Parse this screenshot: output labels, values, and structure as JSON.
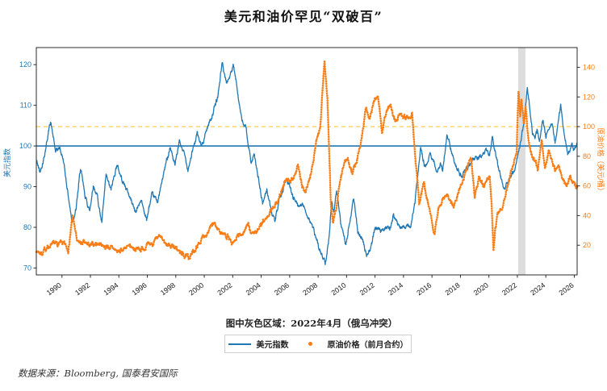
{
  "title": "美元和油价罕见“双破百”",
  "note": "图中灰色区域：2022年4月（俄乌冲突）",
  "source": "数据来源：Bloomberg, 国泰君安国际",
  "colors": {
    "usd_line": "#1f77b4",
    "oil_line": "#f97d14",
    "dashed_hline": "#fcc63c",
    "grey_band": "#d9d9d9",
    "axis": "#2b2b2b",
    "x_tick_label": "#1a1a1a"
  },
  "legend": [
    {
      "label": "美元指数",
      "marker": "line",
      "color": "#1f77b4"
    },
    {
      "label": "原油价格（前月合约）",
      "marker": "dot",
      "color": "#f97d14"
    }
  ],
  "chart_data": {
    "type": "line",
    "title": "美元和油价罕见“双破百”",
    "ylabel_left": "美元指数",
    "ylabel_right": "原油价格（美元/桶）",
    "xlim": [
      1988.2,
      2026.2
    ],
    "ylim_left": [
      68.3,
      124.2
    ],
    "ylim_right": [
      0,
      153.3
    ],
    "x_ticks": [
      1990,
      1992,
      1994,
      1996,
      1998,
      2000,
      2002,
      2004,
      2006,
      2008,
      2010,
      2012,
      2014,
      2016,
      2018,
      2020,
      2022,
      2024,
      2026
    ],
    "y_ticks_left": [
      70,
      80,
      90,
      100,
      110,
      120
    ],
    "y_ticks_right": [
      20,
      40,
      60,
      80,
      100,
      120,
      140
    ],
    "hline_left_solid": 100,
    "hline_right_dashed": 100,
    "grey_band_years": [
      2022.06,
      2022.57
    ],
    "grid": false,
    "legend_position": "bottom-center",
    "series": [
      {
        "name": "美元指数",
        "axis": "left",
        "color": "#1f77b4",
        "style": "solid-line",
        "points": [
          [
            1988.2,
            96.5
          ],
          [
            1988.45,
            93.5
          ],
          [
            1988.75,
            97.5
          ],
          [
            1989.2,
            106.3
          ],
          [
            1989.55,
            98.5
          ],
          [
            1989.85,
            99.5
          ],
          [
            1990.1,
            96.5
          ],
          [
            1990.7,
            81.5
          ],
          [
            1991.0,
            84.5
          ],
          [
            1991.3,
            94.5
          ],
          [
            1991.6,
            88
          ],
          [
            1991.95,
            84
          ],
          [
            1992.2,
            90.5
          ],
          [
            1992.5,
            87.5
          ],
          [
            1992.8,
            81
          ],
          [
            1993.1,
            92.5
          ],
          [
            1993.45,
            89
          ],
          [
            1993.85,
            95.5
          ],
          [
            1994.2,
            92
          ],
          [
            1994.65,
            88.5
          ],
          [
            1995.2,
            83.7
          ],
          [
            1995.55,
            87
          ],
          [
            1995.95,
            81.8
          ],
          [
            1996.3,
            87.7
          ],
          [
            1996.75,
            86.5
          ],
          [
            1997.2,
            94
          ],
          [
            1997.6,
            100
          ],
          [
            1997.95,
            95
          ],
          [
            1998.25,
            101
          ],
          [
            1998.55,
            98.5
          ],
          [
            1998.85,
            94.5
          ],
          [
            1999.2,
            99
          ],
          [
            1999.5,
            103
          ],
          [
            1999.8,
            99.8
          ],
          [
            2000.2,
            104.5
          ],
          [
            2000.6,
            108
          ],
          [
            2000.95,
            112
          ],
          [
            2001.25,
            120.5
          ],
          [
            2001.55,
            115.5
          ],
          [
            2001.85,
            117.5
          ],
          [
            2002.05,
            119.5
          ],
          [
            2002.35,
            113.5
          ],
          [
            2002.65,
            106
          ],
          [
            2002.95,
            104
          ],
          [
            2003.3,
            95.6
          ],
          [
            2003.5,
            97.6
          ],
          [
            2003.8,
            92.1
          ],
          [
            2004.1,
            85.7
          ],
          [
            2004.4,
            89.5
          ],
          [
            2004.7,
            84.1
          ],
          [
            2004.95,
            81.3
          ],
          [
            2005.3,
            86.5
          ],
          [
            2005.7,
            91.5
          ],
          [
            2005.95,
            90.5
          ],
          [
            2006.2,
            88.1
          ],
          [
            2006.6,
            85.3
          ],
          [
            2006.85,
            86.1
          ],
          [
            2007.1,
            84.1
          ],
          [
            2007.5,
            81.3
          ],
          [
            2007.8,
            77.8
          ],
          [
            2008.2,
            73.5
          ],
          [
            2008.5,
            71.5
          ],
          [
            2008.75,
            77
          ],
          [
            2008.95,
            87
          ],
          [
            2009.1,
            83.5
          ],
          [
            2009.3,
            89
          ],
          [
            2009.6,
            81
          ],
          [
            2009.95,
            75.3
          ],
          [
            2010.2,
            81
          ],
          [
            2010.5,
            87.3
          ],
          [
            2010.8,
            78.5
          ],
          [
            2011.05,
            78
          ],
          [
            2011.4,
            73.3
          ],
          [
            2011.7,
            74.8
          ],
          [
            2012.0,
            80
          ],
          [
            2012.4,
            78.8
          ],
          [
            2012.75,
            80.5
          ],
          [
            2013.05,
            79.6
          ],
          [
            2013.3,
            82.8
          ],
          [
            2013.6,
            80.7
          ],
          [
            2014.0,
            80.3
          ],
          [
            2014.5,
            80
          ],
          [
            2014.8,
            86
          ],
          [
            2015.2,
            99.5
          ],
          [
            2015.55,
            94.3
          ],
          [
            2015.9,
            98.5
          ],
          [
            2016.3,
            93.8
          ],
          [
            2016.6,
            95.8
          ],
          [
            2016.75,
            94.5
          ],
          [
            2017.05,
            102.5
          ],
          [
            2017.5,
            97
          ],
          [
            2017.95,
            93.2
          ],
          [
            2018.15,
            92.8
          ],
          [
            2018.5,
            94.8
          ],
          [
            2018.9,
            96.8
          ],
          [
            2019.2,
            97
          ],
          [
            2019.55,
            97.8
          ],
          [
            2019.85,
            98.8
          ],
          [
            2020.05,
            97.5
          ],
          [
            2020.25,
            102.8
          ],
          [
            2020.6,
            96
          ],
          [
            2020.95,
            90.5
          ],
          [
            2021.1,
            89.8
          ],
          [
            2021.35,
            91.2
          ],
          [
            2021.6,
            92.5
          ],
          [
            2021.85,
            94
          ],
          [
            2022.0,
            97
          ],
          [
            2022.2,
            100.5
          ],
          [
            2022.4,
            104
          ],
          [
            2022.55,
            109
          ],
          [
            2022.7,
            114.3
          ],
          [
            2022.9,
            109
          ],
          [
            2023.05,
            103.5
          ],
          [
            2023.25,
            101.5
          ],
          [
            2023.4,
            104
          ],
          [
            2023.55,
            100.8
          ],
          [
            2023.8,
            106.5
          ],
          [
            2024.0,
            102.5
          ],
          [
            2024.2,
            104.8
          ],
          [
            2024.45,
            105.8
          ],
          [
            2024.65,
            100.4
          ],
          [
            2024.9,
            106.5
          ],
          [
            2025.05,
            109.8
          ],
          [
            2025.3,
            103
          ],
          [
            2025.55,
            98
          ],
          [
            2025.8,
            100.2
          ],
          [
            2026.0,
            99
          ],
          [
            2026.2,
            100.8
          ]
        ]
      },
      {
        "name": "原油价格（前月合约）",
        "axis": "right",
        "color": "#f97d14",
        "style": "dense-dots",
        "points": [
          [
            1988.2,
            16.5
          ],
          [
            1988.6,
            14.5
          ],
          [
            1989.0,
            19
          ],
          [
            1989.5,
            20.5
          ],
          [
            1990.0,
            21.5
          ],
          [
            1990.45,
            17.5
          ],
          [
            1990.75,
            39.5
          ],
          [
            1991.1,
            21
          ],
          [
            1991.5,
            21.5
          ],
          [
            1992.0,
            19.5
          ],
          [
            1992.5,
            21.5
          ],
          [
            1993.0,
            19.8
          ],
          [
            1993.5,
            18
          ],
          [
            1994.0,
            15.2
          ],
          [
            1994.45,
            18.5
          ],
          [
            1995.0,
            18.2
          ],
          [
            1995.5,
            17.5
          ],
          [
            1996.0,
            19.5
          ],
          [
            1996.5,
            22
          ],
          [
            1996.85,
            25.5
          ],
          [
            1997.3,
            21
          ],
          [
            1997.8,
            20
          ],
          [
            1998.3,
            14.8
          ],
          [
            1998.9,
            11.5
          ],
          [
            1999.4,
            17.5
          ],
          [
            1999.9,
            25.5
          ],
          [
            2000.3,
            30
          ],
          [
            2000.7,
            34.5
          ],
          [
            2001.0,
            30.5
          ],
          [
            2001.35,
            27.5
          ],
          [
            2001.65,
            26.5
          ],
          [
            2001.95,
            19.5
          ],
          [
            2002.3,
            25
          ],
          [
            2002.7,
            28.5
          ],
          [
            2003.05,
            33.5
          ],
          [
            2003.35,
            27.5
          ],
          [
            2003.7,
            30
          ],
          [
            2004.05,
            34
          ],
          [
            2004.45,
            38.5
          ],
          [
            2004.8,
            46
          ],
          [
            2005.1,
            49
          ],
          [
            2005.5,
            58
          ],
          [
            2005.7,
            64
          ],
          [
            2006.0,
            62
          ],
          [
            2006.3,
            68
          ],
          [
            2006.6,
            73.5
          ],
          [
            2006.9,
            60.5
          ],
          [
            2007.1,
            56
          ],
          [
            2007.5,
            68
          ],
          [
            2007.9,
            92
          ],
          [
            2008.15,
            100
          ],
          [
            2008.45,
            144.5
          ],
          [
            2008.65,
            118
          ],
          [
            2008.9,
            48
          ],
          [
            2009.05,
            35.5
          ],
          [
            2009.25,
            44
          ],
          [
            2009.55,
            64
          ],
          [
            2009.85,
            76
          ],
          [
            2010.1,
            79
          ],
          [
            2010.4,
            69
          ],
          [
            2010.75,
            78
          ],
          [
            2011.05,
            92
          ],
          [
            2011.35,
            113
          ],
          [
            2011.6,
            104
          ],
          [
            2011.9,
            116
          ],
          [
            2012.2,
            122
          ],
          [
            2012.5,
            96
          ],
          [
            2012.8,
            110
          ],
          [
            2013.1,
            114.5
          ],
          [
            2013.45,
            103
          ],
          [
            2013.75,
            109.5
          ],
          [
            2014.05,
            107.5
          ],
          [
            2014.35,
            106.5
          ],
          [
            2014.6,
            110
          ],
          [
            2014.85,
            76
          ],
          [
            2015.1,
            48
          ],
          [
            2015.45,
            62
          ],
          [
            2015.8,
            45
          ],
          [
            2016.15,
            28
          ],
          [
            2016.5,
            47
          ],
          [
            2016.8,
            51.5
          ],
          [
            2017.05,
            54
          ],
          [
            2017.3,
            50.5
          ],
          [
            2017.55,
            46
          ],
          [
            2017.85,
            57
          ],
          [
            2018.15,
            64
          ],
          [
            2018.45,
            71
          ],
          [
            2018.75,
            80
          ],
          [
            2019.0,
            53
          ],
          [
            2019.3,
            65
          ],
          [
            2019.6,
            60
          ],
          [
            2019.85,
            64
          ],
          [
            2020.05,
            66
          ],
          [
            2020.2,
            45
          ],
          [
            2020.32,
            15.5
          ],
          [
            2020.45,
            32
          ],
          [
            2020.6,
            40
          ],
          [
            2020.9,
            44
          ],
          [
            2021.1,
            52
          ],
          [
            2021.4,
            64
          ],
          [
            2021.7,
            73
          ],
          [
            2021.95,
            84
          ],
          [
            2022.08,
            124
          ],
          [
            2022.2,
            106
          ],
          [
            2022.3,
            117
          ],
          [
            2022.45,
            100
          ],
          [
            2022.58,
            112
          ],
          [
            2022.72,
            96
          ],
          [
            2022.9,
            85
          ],
          [
            2023.2,
            77
          ],
          [
            2023.45,
            72
          ],
          [
            2023.7,
            91
          ],
          [
            2023.95,
            73
          ],
          [
            2024.2,
            84
          ],
          [
            2024.45,
            78
          ],
          [
            2024.65,
            70
          ],
          [
            2024.9,
            74
          ],
          [
            2025.2,
            65
          ],
          [
            2025.45,
            61
          ],
          [
            2025.7,
            66
          ],
          [
            2025.95,
            62
          ],
          [
            2026.2,
            59
          ]
        ]
      }
    ]
  }
}
